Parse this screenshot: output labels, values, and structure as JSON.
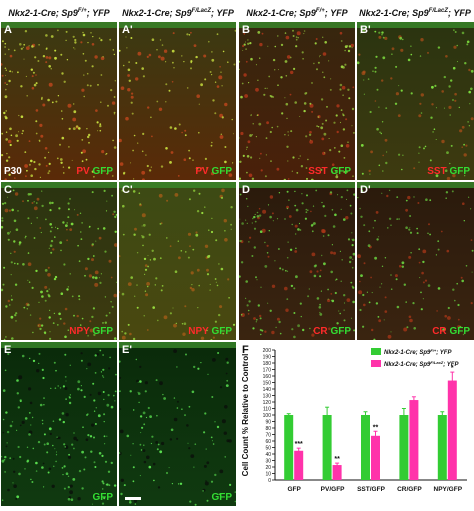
{
  "columns": [
    {
      "prefix": "Nkx2-1-Cre; Sp9",
      "sup": "F/+",
      "suffix": "; YFP"
    },
    {
      "prefix": "Nkx2-1-Cre; Sp9",
      "sup": "F/LacZ",
      "suffix": "; YFP"
    },
    {
      "prefix": "Nkx2-1-Cre; Sp9",
      "sup": "F/+",
      "suffix": "; YFP"
    },
    {
      "prefix": "Nkx2-1-Cre; Sp9",
      "sup": "F/LacZ",
      "suffix": "; YFP"
    }
  ],
  "age_label": "P30",
  "panels": [
    {
      "label": "A",
      "marker": "PV",
      "green": "GFP",
      "density": "high"
    },
    {
      "label": "A'",
      "marker": "PV",
      "green": "GFP",
      "density": "low"
    },
    {
      "label": "B",
      "marker": "SST",
      "green": "GFP",
      "density": "high"
    },
    {
      "label": "B'",
      "marker": "SST",
      "green": "GFP",
      "density": "low"
    },
    {
      "label": "C",
      "marker": "NPY",
      "green": "GFP",
      "density": "high"
    },
    {
      "label": "C'",
      "marker": "NPY",
      "green": "GFP",
      "density": "low"
    },
    {
      "label": "D",
      "marker": "CR",
      "green": "GFP",
      "density": "high"
    },
    {
      "label": "D'",
      "marker": "CR",
      "green": "GFP",
      "density": "low"
    },
    {
      "label": "E",
      "marker": "",
      "green": "GFP",
      "density": "high"
    },
    {
      "label": "E'",
      "marker": "",
      "green": "GFP",
      "density": "low"
    }
  ],
  "chart_data": {
    "type": "bar",
    "panel_label": "F",
    "categories": [
      "GFP",
      "PV/GFP",
      "SST/GFP",
      "CR/GFP",
      "NPY/GFP"
    ],
    "series": [
      {
        "name": "Nkx2-1-Cre; Sp9F/+; YFP",
        "name_prefix": "Nkx2-1-Cre; Sp9",
        "name_sup": "F/+",
        "name_suffix": "; YFP",
        "color": "#33cc33",
        "values": [
          100,
          100,
          100,
          100,
          100
        ],
        "errors": [
          2,
          12,
          5,
          10,
          5
        ]
      },
      {
        "name": "Nkx2-1-Cre; Sp9F/LacZ; YFP",
        "name_prefix": "Nkx2-1-Cre; Sp9",
        "name_sup": "F/LacZ",
        "name_suffix": "; YFP",
        "color": "#ff33aa",
        "values": [
          45,
          23,
          68,
          123,
          153
        ],
        "errors": [
          4,
          3,
          7,
          5,
          13
        ]
      }
    ],
    "significance": [
      "***",
      "**",
      "**",
      "",
      "*"
    ],
    "ylabel": "Cell Count % Relative to Control",
    "ylim": [
      0,
      200
    ],
    "yticks": [
      "0",
      "10",
      "20",
      "30",
      "40",
      "50",
      "60",
      "70",
      "80",
      "90",
      "100",
      "110",
      "120",
      "130",
      "140",
      "150",
      "160",
      "170",
      "180",
      "190",
      "200"
    ],
    "legend": "top-right"
  }
}
